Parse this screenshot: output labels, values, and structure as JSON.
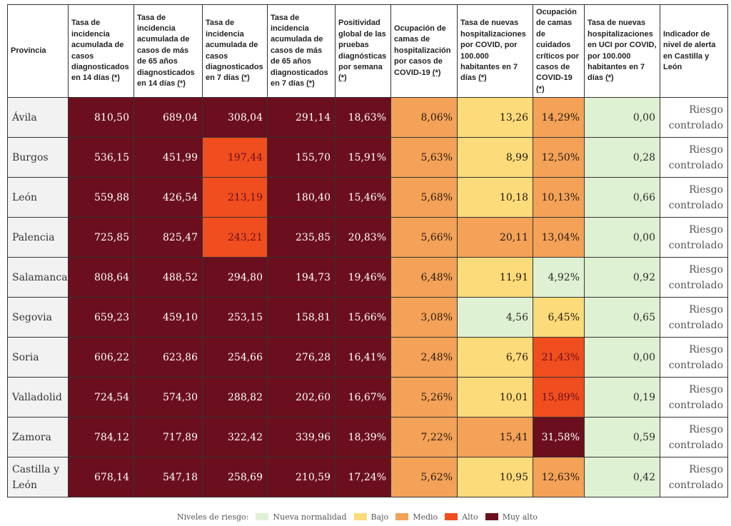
{
  "table": {
    "headers": [
      {
        "text": "Provincia",
        "ast": ""
      },
      {
        "text": "Tasa de incidencia acumulada de casos diagnosticados en 14 días ",
        "ast": "(*)"
      },
      {
        "text": "Tasa de incidencia acumulada de casos de más de 65 años diagnosticados en 14 días ",
        "ast": "(*)"
      },
      {
        "text": "Tasa de incidencia acumulada de casos diagnosticados en 7 días ",
        "ast": "(*)"
      },
      {
        "text": "Tasa de incidencia acumulada de casos de más de 65 años diagnosticados en 7 días ",
        "ast": "(*)"
      },
      {
        "text": "Positividad global de las pruebas diagnósticas por semana ",
        "ast": "(*)"
      },
      {
        "text": "Ocupación de camas de hospitalización por casos de COVID-19 ",
        "ast": "(*)"
      },
      {
        "text": "Tasa de nuevas hospitalizaciones por COVID, por 100.000 habitantes en 7 días ",
        "ast": "(*)"
      },
      {
        "text": "Ocupación de camas de cuidados críticos por casos de COVID-19 ",
        "ast": "(*)"
      },
      {
        "text": "Tasa de nuevas hospitalizaciones en UCI por COVID, por 100.000 habitantes en 7 días ",
        "ast": "(*)"
      },
      {
        "text": "Indicador de nivel de alerta en Castilla y León",
        "ast": ""
      }
    ],
    "rows": [
      {
        "prov": "Ávila",
        "cells": [
          [
            "810,50",
            "mal"
          ],
          [
            "689,04",
            "mal"
          ],
          [
            "308,04",
            "mal"
          ],
          [
            "291,14",
            "mal"
          ],
          [
            "18,63%",
            "mal"
          ],
          [
            "8,06%",
            "med"
          ],
          [
            "13,26",
            "baj"
          ],
          [
            "14,29%",
            "med"
          ],
          [
            "0,00",
            "nue"
          ]
        ],
        "ind": "Riesgo controlado"
      },
      {
        "prov": "Burgos",
        "cells": [
          [
            "536,15",
            "mal"
          ],
          [
            "451,99",
            "mal"
          ],
          [
            "197,44",
            "alt"
          ],
          [
            "155,70",
            "mal"
          ],
          [
            "15,91%",
            "mal"
          ],
          [
            "5,63%",
            "med"
          ],
          [
            "8,99",
            "baj"
          ],
          [
            "12,50%",
            "med"
          ],
          [
            "0,28",
            "nue"
          ]
        ],
        "ind": "Riesgo controlado"
      },
      {
        "prov": "León",
        "cells": [
          [
            "559,88",
            "mal"
          ],
          [
            "426,54",
            "mal"
          ],
          [
            "213,19",
            "alt"
          ],
          [
            "180,40",
            "mal"
          ],
          [
            "15,46%",
            "mal"
          ],
          [
            "5,68%",
            "med"
          ],
          [
            "10,18",
            "baj"
          ],
          [
            "10,13%",
            "med"
          ],
          [
            "0,66",
            "nue"
          ]
        ],
        "ind": "Riesgo controlado"
      },
      {
        "prov": "Palencia",
        "cells": [
          [
            "725,85",
            "mal"
          ],
          [
            "825,47",
            "mal"
          ],
          [
            "243,21",
            "alt"
          ],
          [
            "235,85",
            "mal"
          ],
          [
            "20,83%",
            "mal"
          ],
          [
            "5,66%",
            "med"
          ],
          [
            "20,11",
            "med"
          ],
          [
            "13,04%",
            "med"
          ],
          [
            "0,00",
            "nue"
          ]
        ],
        "ind": "Riesgo controlado"
      },
      {
        "prov": "Salamanca",
        "cells": [
          [
            "808,64",
            "mal"
          ],
          [
            "488,52",
            "mal"
          ],
          [
            "294,80",
            "mal"
          ],
          [
            "194,73",
            "mal"
          ],
          [
            "19,46%",
            "mal"
          ],
          [
            "6,48%",
            "med"
          ],
          [
            "11,91",
            "baj"
          ],
          [
            "4,92%",
            "nue"
          ],
          [
            "0,92",
            "nue"
          ]
        ],
        "ind": "Riesgo controlado"
      },
      {
        "prov": "Segovia",
        "cells": [
          [
            "659,23",
            "mal"
          ],
          [
            "459,10",
            "mal"
          ],
          [
            "253,15",
            "mal"
          ],
          [
            "158,81",
            "mal"
          ],
          [
            "15,66%",
            "mal"
          ],
          [
            "3,08%",
            "med"
          ],
          [
            "4,56",
            "nue"
          ],
          [
            "6,45%",
            "baj"
          ],
          [
            "0,65",
            "nue"
          ]
        ],
        "ind": "Riesgo controlado"
      },
      {
        "prov": "Soria",
        "cells": [
          [
            "606,22",
            "mal"
          ],
          [
            "623,86",
            "mal"
          ],
          [
            "254,66",
            "mal"
          ],
          [
            "276,28",
            "mal"
          ],
          [
            "16,41%",
            "mal"
          ],
          [
            "2,48%",
            "med"
          ],
          [
            "6,76",
            "baj"
          ],
          [
            "21,43%",
            "alt"
          ],
          [
            "0,00",
            "nue"
          ]
        ],
        "ind": "Riesgo controlado"
      },
      {
        "prov": "Valladolid",
        "cells": [
          [
            "724,54",
            "mal"
          ],
          [
            "574,30",
            "mal"
          ],
          [
            "288,82",
            "mal"
          ],
          [
            "202,60",
            "mal"
          ],
          [
            "16,67%",
            "mal"
          ],
          [
            "5,26%",
            "med"
          ],
          [
            "10,01",
            "baj"
          ],
          [
            "15,89%",
            "alt"
          ],
          [
            "0,19",
            "nue"
          ]
        ],
        "ind": "Riesgo controlado"
      },
      {
        "prov": "Zamora",
        "cells": [
          [
            "784,12",
            "mal"
          ],
          [
            "717,89",
            "mal"
          ],
          [
            "322,42",
            "mal"
          ],
          [
            "339,96",
            "mal"
          ],
          [
            "18,39%",
            "mal"
          ],
          [
            "7,22%",
            "med"
          ],
          [
            "15,41",
            "med"
          ],
          [
            "31,58%",
            "mal"
          ],
          [
            "0,59",
            "nue"
          ]
        ],
        "ind": "Riesgo controlado"
      },
      {
        "prov": "Castilla y León",
        "cells": [
          [
            "678,14",
            "mal"
          ],
          [
            "547,18",
            "mal"
          ],
          [
            "258,69",
            "mal"
          ],
          [
            "210,59",
            "mal"
          ],
          [
            "17,24%",
            "mal"
          ],
          [
            "5,62%",
            "med"
          ],
          [
            "10,95",
            "baj"
          ],
          [
            "12,63%",
            "med"
          ],
          [
            "0,42",
            "nue"
          ]
        ],
        "ind": "Riesgo controlado"
      }
    ]
  },
  "legend": {
    "label": "Niveles de riesgo:",
    "items": [
      {
        "key": "nue",
        "label": "Nueva normalidad",
        "color": "#dff1d3"
      },
      {
        "key": "baj",
        "label": "Bajo",
        "color": "#fbdb7a"
      },
      {
        "key": "med",
        "label": "Medio",
        "color": "#f3a258"
      },
      {
        "key": "alt",
        "label": "Alto",
        "color": "#f04e1e"
      },
      {
        "key": "mal",
        "label": "Muy alto",
        "color": "#6b0f1e"
      }
    ]
  }
}
